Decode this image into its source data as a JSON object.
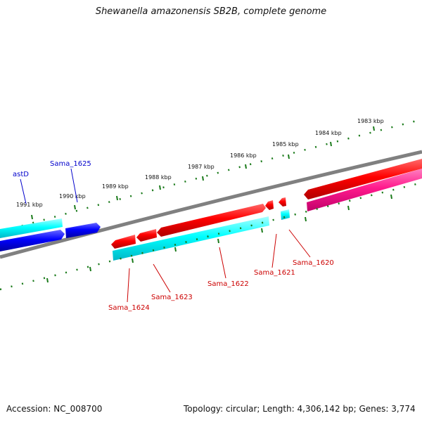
{
  "header": {
    "title": "Shewanella amazonensis SB2B, complete genome"
  },
  "footer": {
    "accession": "Accession: NC_008700",
    "summary": "Topology: circular; Length: 4,306,142 bp; Genes: 3,774"
  },
  "ticks": [
    {
      "label": "1983 kbp"
    },
    {
      "label": "1984 kbp"
    },
    {
      "label": "1985 kbp"
    },
    {
      "label": "1986 kbp"
    },
    {
      "label": "1987 kbp"
    },
    {
      "label": "1988 kbp"
    },
    {
      "label": "1989 kbp"
    },
    {
      "label": "1990 kbp"
    },
    {
      "label": "1991 kbp"
    }
  ],
  "genes": [
    {
      "label": "astD",
      "color": "#0000cc"
    },
    {
      "label": "Sama_1625",
      "color": "#0000cc"
    },
    {
      "label": "Sama_1624",
      "color": "#cc0000"
    },
    {
      "label": "Sama_1623",
      "color": "#cc0000"
    },
    {
      "label": "Sama_1622",
      "color": "#cc0000"
    },
    {
      "label": "Sama_1621",
      "color": "#cc0000"
    },
    {
      "label": "Sama_1620",
      "color": "#cc0000"
    }
  ],
  "colors": {
    "backbone": "#808080",
    "tick": "#1a7a1a",
    "forward_cds": "#ff0000",
    "reverse_cds": "#0000ff",
    "cds_track": "#00ffff",
    "rna_track": "#ff1a8c"
  }
}
